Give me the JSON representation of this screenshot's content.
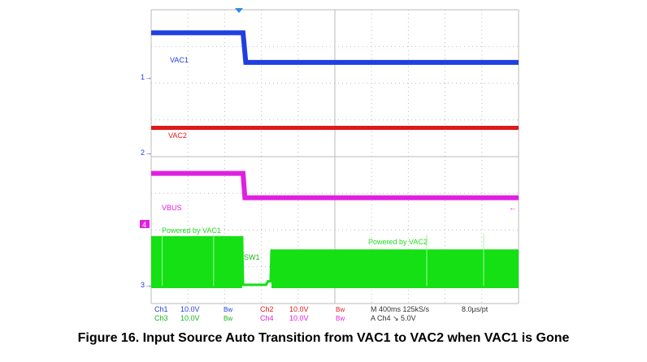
{
  "chart_data": {
    "type": "line",
    "title": "Figure 16.  Input Source Auto Transition from VAC1 to VAC2 when VAC1 is Gone",
    "x_unit": "ms",
    "xlim": [
      0,
      4000
    ],
    "x_divisions": 10,
    "y_divisions": 8,
    "grid": true,
    "series": [
      {
        "name": "VAC1",
        "channel_marker": "1",
        "color": "#1f3fe0",
        "points": [
          [
            0,
            12.0
          ],
          [
            1000,
            12.0
          ],
          [
            1030,
            5.0
          ],
          [
            4000,
            5.0
          ]
        ]
      },
      {
        "name": "VAC2",
        "channel_marker": "2",
        "color": "#e01818",
        "points": [
          [
            0,
            3.5
          ],
          [
            4000,
            3.5
          ]
        ]
      },
      {
        "name": "VBUS",
        "channel_marker": "",
        "color": "#e020e0",
        "points": [
          [
            0,
            12.0
          ],
          [
            1000,
            12.0
          ],
          [
            1020,
            5.0
          ],
          [
            4000,
            5.0
          ]
        ]
      },
      {
        "name": "SW1",
        "channel_marker": "3",
        "color": "#14e014",
        "points": [
          [
            0,
            11.0
          ],
          [
            990,
            11.0
          ],
          [
            1000,
            0.2
          ],
          [
            1250,
            0.2
          ],
          [
            1270,
            1.0
          ],
          [
            1300,
            1.0
          ],
          [
            1310,
            8.0
          ],
          [
            4000,
            8.0
          ]
        ]
      }
    ],
    "annotations": [
      "Powered by VAC1",
      "SW1",
      "Powered by VAC2"
    ],
    "trigger_marker": "4",
    "readout": {
      "ch1": "Ch1",
      "ch1_scale": "10.0V",
      "ch1_bw": "Bw",
      "ch2": "Ch2",
      "ch2_scale": "10.0V",
      "ch2_bw": "Bw",
      "ch3": "Ch3",
      "ch3_scale": "10.0V",
      "ch3_bw": "Bw",
      "ch4": "Ch4",
      "ch4_scale": "10.0V",
      "ch4_bw": "Bw",
      "timebase": "M 400ms 125kS/s",
      "sample_interval": "8.0µs/pt",
      "trigger": "A  Ch4  ↘  5.0V"
    }
  }
}
